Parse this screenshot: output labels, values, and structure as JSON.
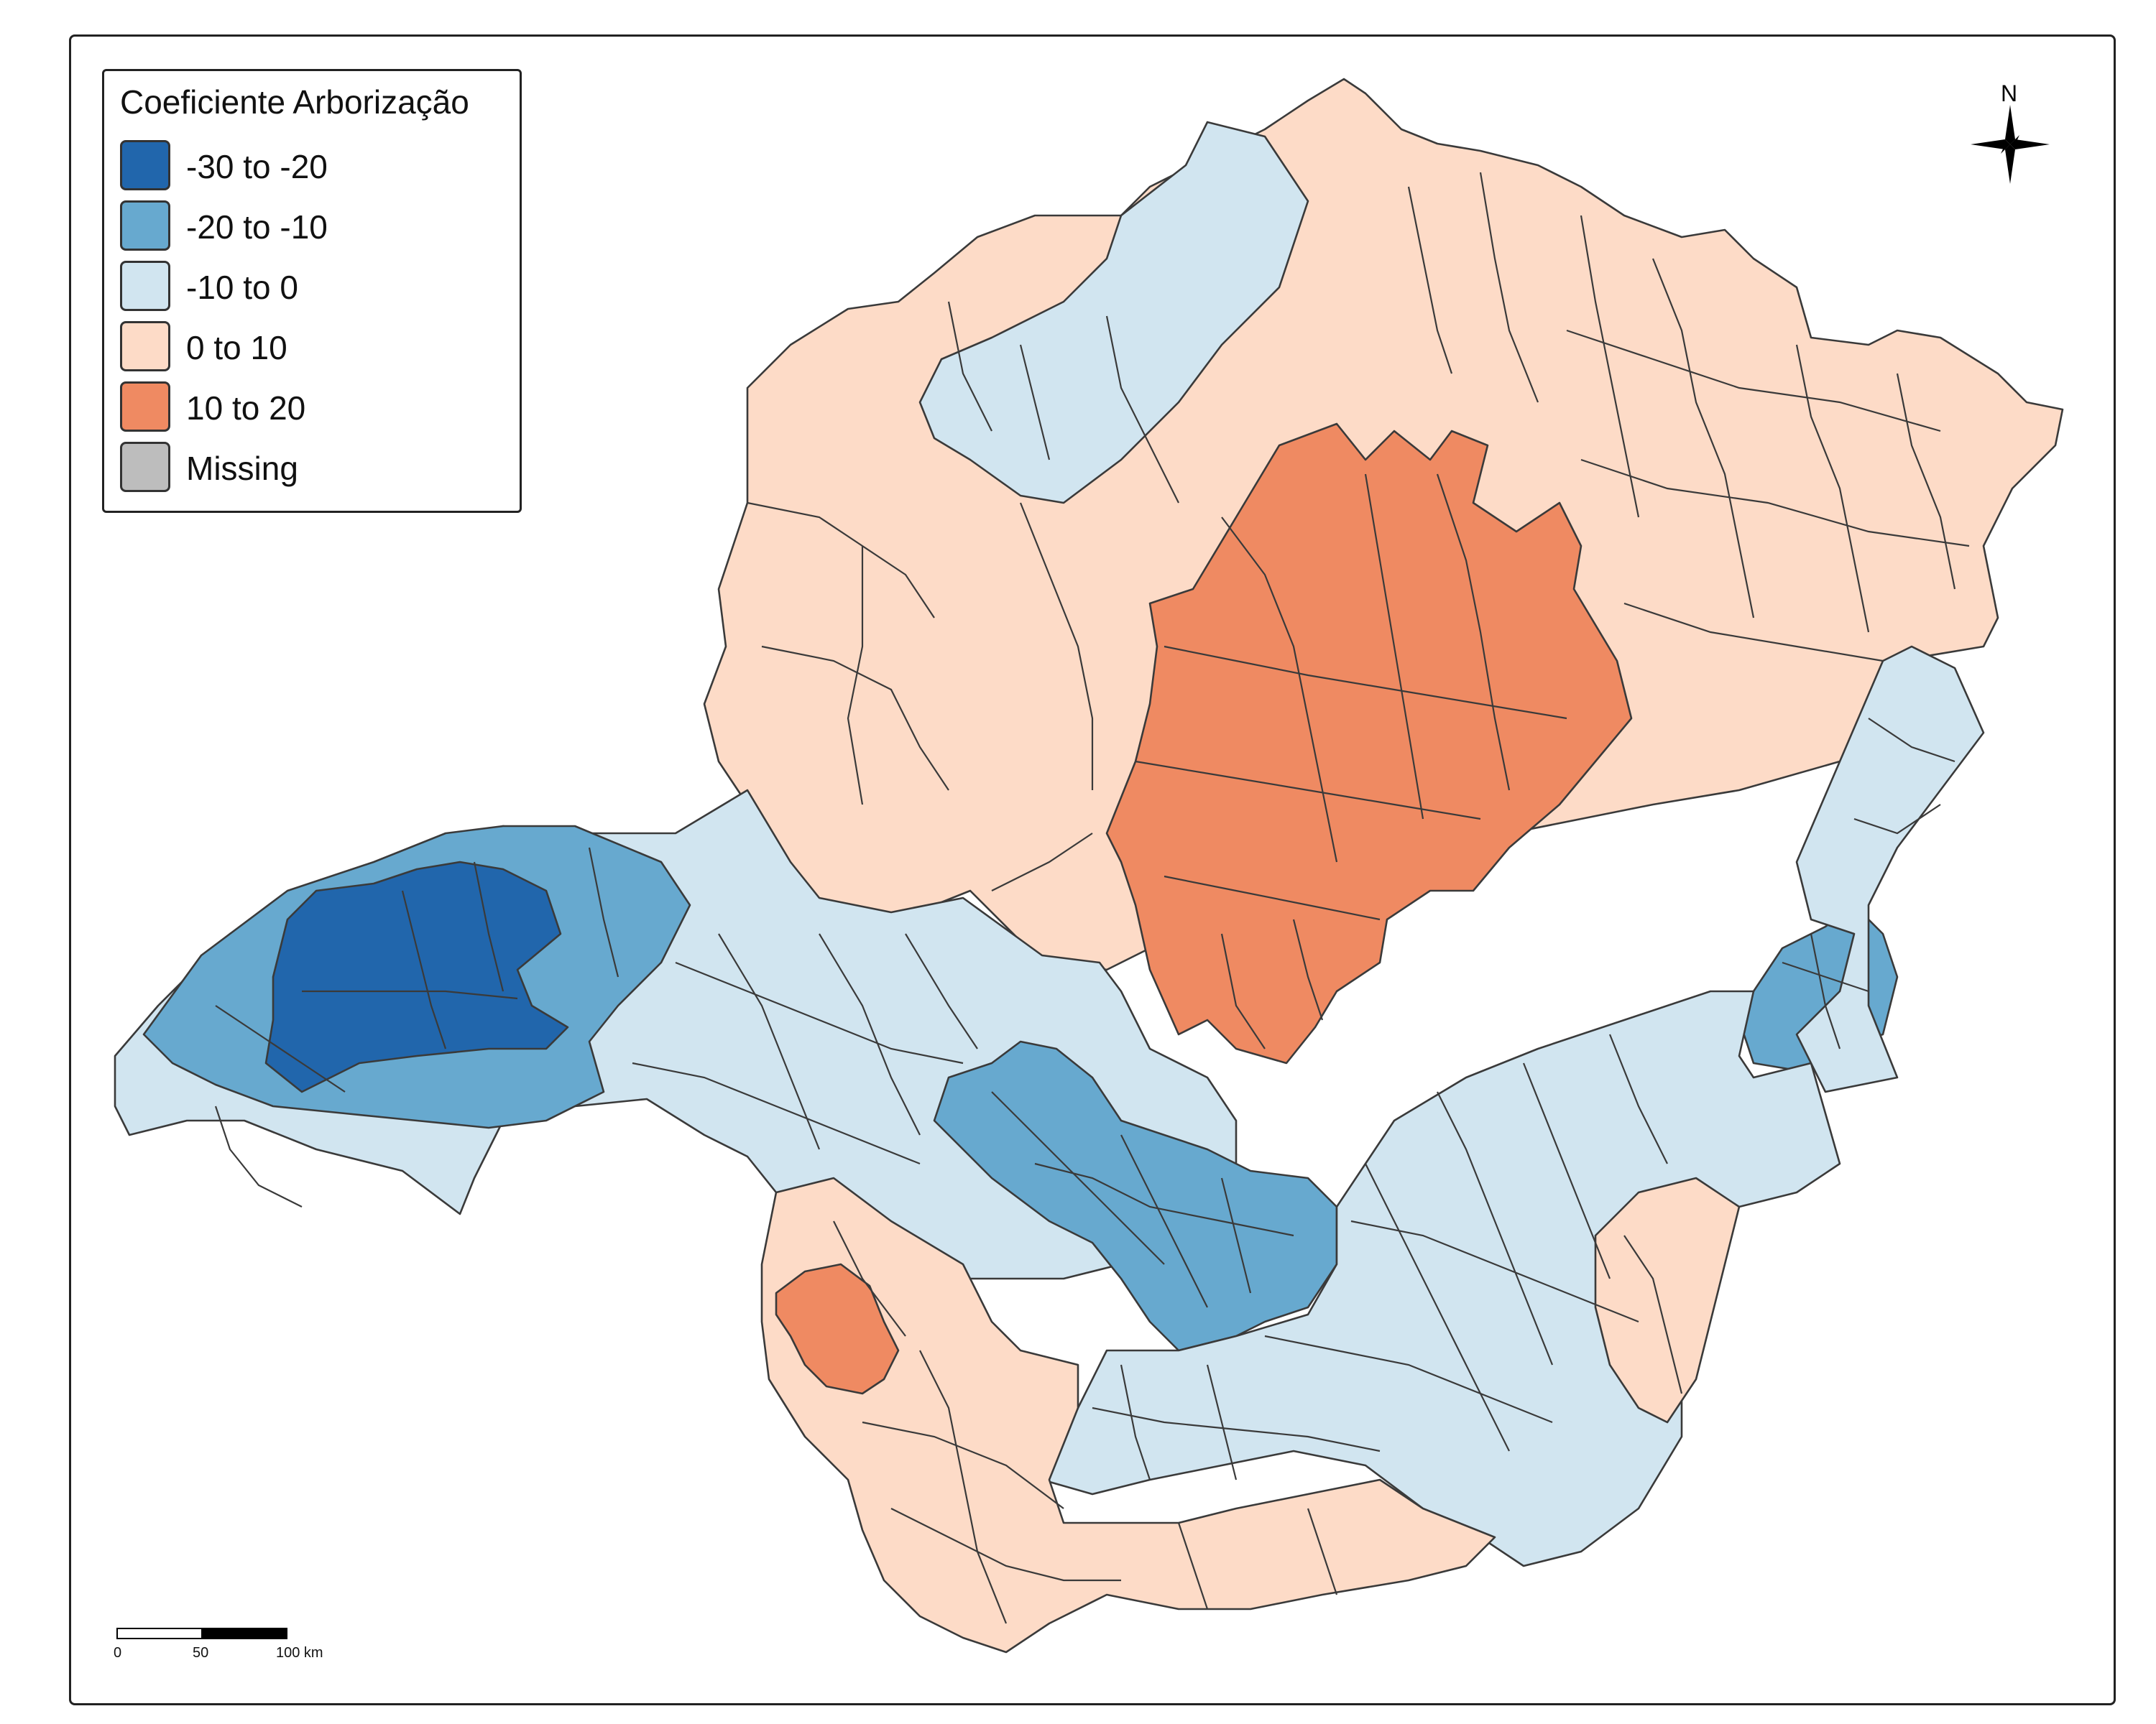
{
  "legend": {
    "title": "Coeficiente Arborização",
    "items": [
      {
        "label": "-30 to -20",
        "color": "#2166ac"
      },
      {
        "label": "-20 to -10",
        "color": "#67a9cf"
      },
      {
        "label": "-10 to 0",
        "color": "#d1e5f0"
      },
      {
        "label": "0 to 10",
        "color": "#fddbc7"
      },
      {
        "label": "10 to 20",
        "color": "#ef8a62"
      },
      {
        "label": "Missing",
        "color": "#bdbdbd"
      }
    ]
  },
  "north_arrow": {
    "label": "N",
    "icon": "compass-star-icon"
  },
  "scale_bar": {
    "labels": [
      "0",
      "50",
      "100 km"
    ]
  },
  "colors": {
    "border": "#3a3a3a",
    "frame": "#222222"
  }
}
